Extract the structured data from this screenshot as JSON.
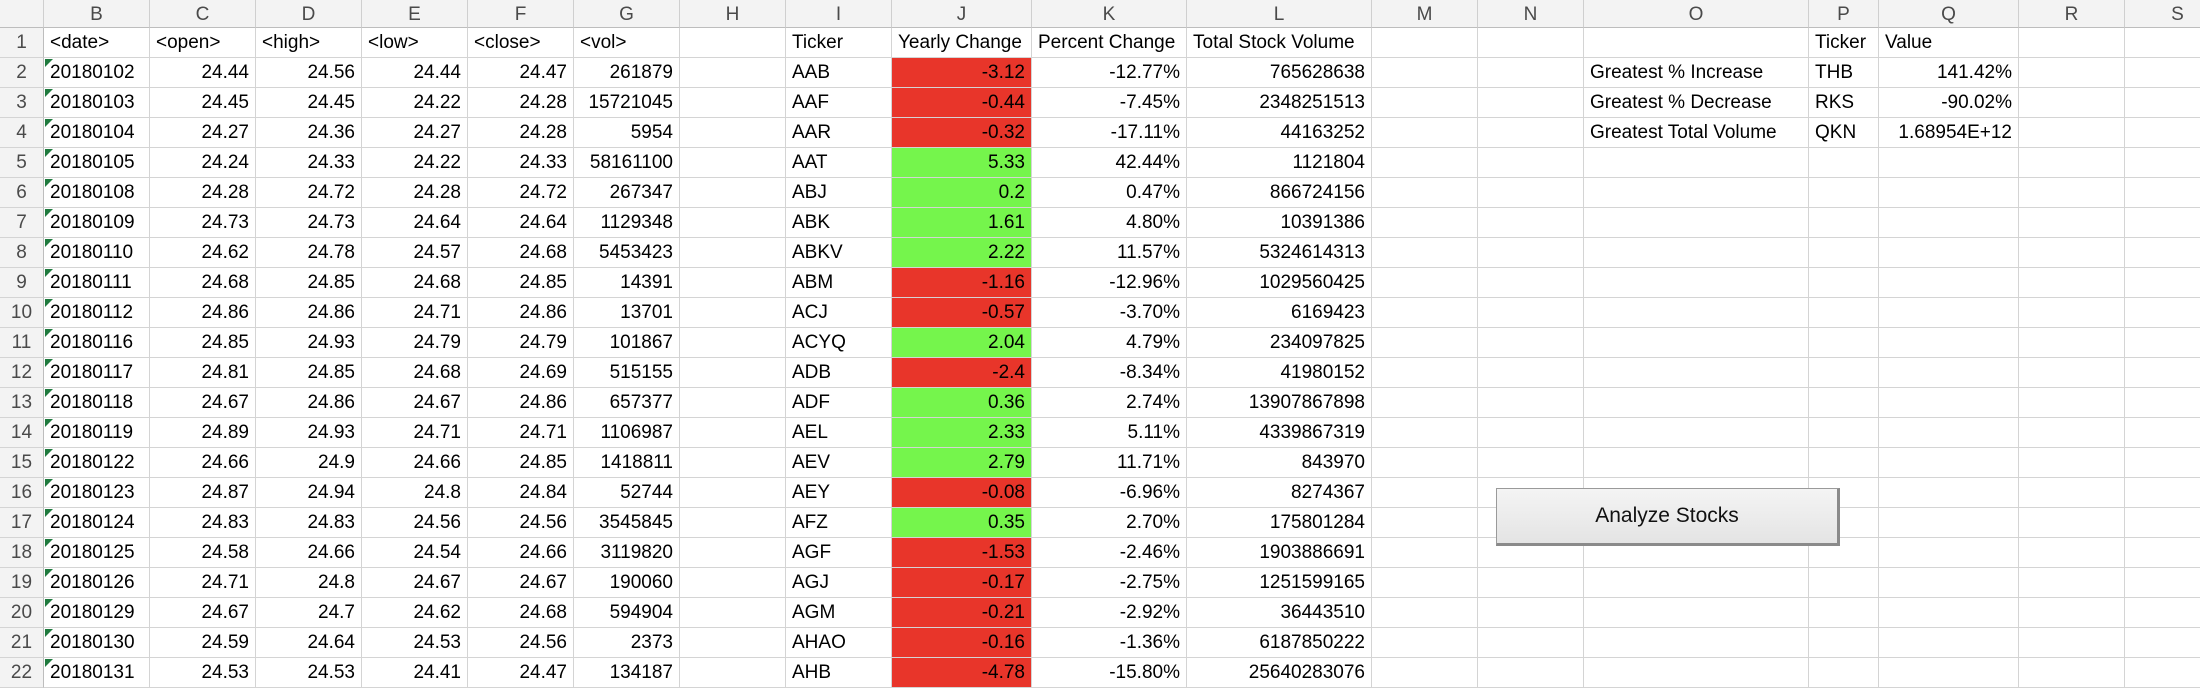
{
  "columns": [
    "B",
    "C",
    "D",
    "E",
    "F",
    "G",
    "H",
    "I",
    "J",
    "K",
    "L",
    "M",
    "N",
    "O",
    "P",
    "Q",
    "R",
    "S"
  ],
  "header_row": [
    "<date>",
    "<open>",
    "<high>",
    "<low>",
    "<close>",
    "<vol>",
    "",
    "Ticker",
    "Yearly Change",
    "Percent Change",
    "Total Stock Volume",
    "",
    "",
    "",
    "Ticker",
    "Value",
    "",
    ""
  ],
  "rows": [
    {
      "n": "2",
      "date": "20180102",
      "open": "24.44",
      "high": "24.56",
      "low": "24.44",
      "close": "24.47",
      "vol": "261879",
      "ticker": "AAB",
      "change": "-3.12",
      "pct": "-12.77%",
      "total": "765628638",
      "summary": {
        "label": "Greatest % Increase",
        "ticker": "THB",
        "value": "141.42%"
      }
    },
    {
      "n": "3",
      "date": "20180103",
      "open": "24.45",
      "high": "24.45",
      "low": "24.22",
      "close": "24.28",
      "vol": "15721045",
      "ticker": "AAF",
      "change": "-0.44",
      "pct": "-7.45%",
      "total": "2348251513",
      "summary": {
        "label": "Greatest % Decrease",
        "ticker": "RKS",
        "value": "-90.02%"
      }
    },
    {
      "n": "4",
      "date": "20180104",
      "open": "24.27",
      "high": "24.36",
      "low": "24.27",
      "close": "24.28",
      "vol": "5954",
      "ticker": "AAR",
      "change": "-0.32",
      "pct": "-17.11%",
      "total": "44163252",
      "summary": {
        "label": "Greatest Total Volume",
        "ticker": "QKN",
        "value": "1.68954E+12"
      }
    },
    {
      "n": "5",
      "date": "20180105",
      "open": "24.24",
      "high": "24.33",
      "low": "24.22",
      "close": "24.33",
      "vol": "58161100",
      "ticker": "AAT",
      "change": "5.33",
      "pct": "42.44%",
      "total": "1121804"
    },
    {
      "n": "6",
      "date": "20180108",
      "open": "24.28",
      "high": "24.72",
      "low": "24.28",
      "close": "24.72",
      "vol": "267347",
      "ticker": "ABJ",
      "change": "0.2",
      "pct": "0.47%",
      "total": "866724156"
    },
    {
      "n": "7",
      "date": "20180109",
      "open": "24.73",
      "high": "24.73",
      "low": "24.64",
      "close": "24.64",
      "vol": "1129348",
      "ticker": "ABK",
      "change": "1.61",
      "pct": "4.80%",
      "total": "10391386"
    },
    {
      "n": "8",
      "date": "20180110",
      "open": "24.62",
      "high": "24.78",
      "low": "24.57",
      "close": "24.68",
      "vol": "5453423",
      "ticker": "ABKV",
      "change": "2.22",
      "pct": "11.57%",
      "total": "5324614313"
    },
    {
      "n": "9",
      "date": "20180111",
      "open": "24.68",
      "high": "24.85",
      "low": "24.68",
      "close": "24.85",
      "vol": "14391",
      "ticker": "ABM",
      "change": "-1.16",
      "pct": "-12.96%",
      "total": "1029560425"
    },
    {
      "n": "10",
      "date": "20180112",
      "open": "24.86",
      "high": "24.86",
      "low": "24.71",
      "close": "24.86",
      "vol": "13701",
      "ticker": "ACJ",
      "change": "-0.57",
      "pct": "-3.70%",
      "total": "6169423"
    },
    {
      "n": "11",
      "date": "20180116",
      "open": "24.85",
      "high": "24.93",
      "low": "24.79",
      "close": "24.79",
      "vol": "101867",
      "ticker": "ACYQ",
      "change": "2.04",
      "pct": "4.79%",
      "total": "234097825"
    },
    {
      "n": "12",
      "date": "20180117",
      "open": "24.81",
      "high": "24.85",
      "low": "24.68",
      "close": "24.69",
      "vol": "515155",
      "ticker": "ADB",
      "change": "-2.4",
      "pct": "-8.34%",
      "total": "41980152"
    },
    {
      "n": "13",
      "date": "20180118",
      "open": "24.67",
      "high": "24.86",
      "low": "24.67",
      "close": "24.86",
      "vol": "657377",
      "ticker": "ADF",
      "change": "0.36",
      "pct": "2.74%",
      "total": "13907867898"
    },
    {
      "n": "14",
      "date": "20180119",
      "open": "24.89",
      "high": "24.93",
      "low": "24.71",
      "close": "24.71",
      "vol": "1106987",
      "ticker": "AEL",
      "change": "2.33",
      "pct": "5.11%",
      "total": "4339867319"
    },
    {
      "n": "15",
      "date": "20180122",
      "open": "24.66",
      "high": "24.9",
      "low": "24.66",
      "close": "24.85",
      "vol": "1418811",
      "ticker": "AEV",
      "change": "2.79",
      "pct": "11.71%",
      "total": "843970"
    },
    {
      "n": "16",
      "date": "20180123",
      "open": "24.87",
      "high": "24.94",
      "low": "24.8",
      "close": "24.84",
      "vol": "52744",
      "ticker": "AEY",
      "change": "-0.08",
      "pct": "-6.96%",
      "total": "8274367"
    },
    {
      "n": "17",
      "date": "20180124",
      "open": "24.83",
      "high": "24.83",
      "low": "24.56",
      "close": "24.56",
      "vol": "3545845",
      "ticker": "AFZ",
      "change": "0.35",
      "pct": "2.70%",
      "total": "175801284"
    },
    {
      "n": "18",
      "date": "20180125",
      "open": "24.58",
      "high": "24.66",
      "low": "24.54",
      "close": "24.66",
      "vol": "3119820",
      "ticker": "AGF",
      "change": "-1.53",
      "pct": "-2.46%",
      "total": "1903886691"
    },
    {
      "n": "19",
      "date": "20180126",
      "open": "24.71",
      "high": "24.8",
      "low": "24.67",
      "close": "24.67",
      "vol": "190060",
      "ticker": "AGJ",
      "change": "-0.17",
      "pct": "-2.75%",
      "total": "1251599165"
    },
    {
      "n": "20",
      "date": "20180129",
      "open": "24.67",
      "high": "24.7",
      "low": "24.62",
      "close": "24.68",
      "vol": "594904",
      "ticker": "AGM",
      "change": "-0.21",
      "pct": "-2.92%",
      "total": "36443510"
    },
    {
      "n": "21",
      "date": "20180130",
      "open": "24.59",
      "high": "24.64",
      "low": "24.53",
      "close": "24.56",
      "vol": "2373",
      "ticker": "AHAO",
      "change": "-0.16",
      "pct": "-1.36%",
      "total": "6187850222"
    },
    {
      "n": "22",
      "date": "20180131",
      "open": "24.53",
      "high": "24.53",
      "low": "24.41",
      "close": "24.47",
      "vol": "134187",
      "ticker": "AHB",
      "change": "-4.78",
      "pct": "-15.80%",
      "total": "25640283076"
    }
  ],
  "button": {
    "label": "Analyze Stocks"
  },
  "colors": {
    "negative": "#e8352a",
    "positive": "#75f54c",
    "header_bg": "#f3f3f3",
    "gridline": "#d4d4d4",
    "comment_marker": "#1f7a3e"
  },
  "icons": {
    "comment_marker": "green-triangle-icon"
  }
}
